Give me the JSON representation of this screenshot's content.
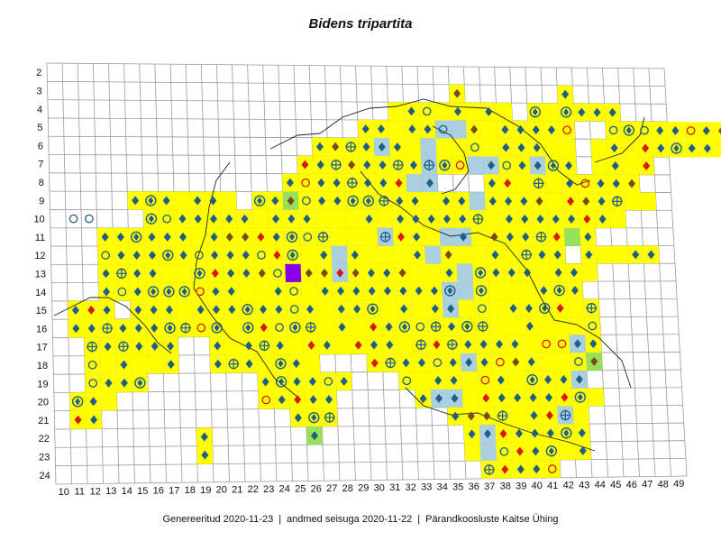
{
  "title": "Bidens tripartita",
  "footer": {
    "generated": "Genereeritud 2020-11-23",
    "status": "andmed seisuga 2020-11-22",
    "org": "Pärandkoosluste Kaitse Ühing",
    "separator": "|"
  },
  "grid": {
    "row_labels": [
      "2",
      "3",
      "4",
      "5",
      "6",
      "7",
      "8",
      "9",
      "10",
      "11",
      "12",
      "13",
      "14",
      "15",
      "16",
      "17",
      "18",
      "19",
      "20",
      "21",
      "22",
      "23",
      "24"
    ],
    "col_labels": [
      "10",
      "11",
      "12",
      "13",
      "14",
      "15",
      "16",
      "17",
      "18",
      "19",
      "20",
      "21",
      "22",
      "23",
      "24",
      "25",
      "26",
      "27",
      "28",
      "29",
      "30",
      "31",
      "32",
      "33",
      "34",
      "35",
      "36",
      "37",
      "38",
      "39",
      "40",
      "41",
      "42",
      "43",
      "44",
      "45",
      "46",
      "47",
      "48",
      "49"
    ]
  },
  "colors": {
    "yellow": "#ffff00",
    "light_blue": "#a9cfe0",
    "light_green": "#99e05a",
    "purple": "#8a00e6",
    "marker_blue": "#1f5f86",
    "marker_brown": "#7a4a1c",
    "marker_red": "#d81818",
    "grid_line": "#9a9a9a",
    "coast_line": "#222222"
  },
  "legend_symbols": [
    "diamond-marker",
    "open-circle-marker",
    "crosshair-marker",
    "diamond-in-circle-marker"
  ]
}
